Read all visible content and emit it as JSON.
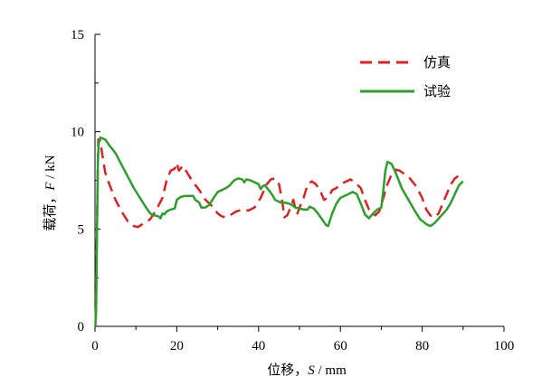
{
  "chart_data": {
    "type": "line",
    "xlabel_parts": [
      "位移，",
      "S",
      " / mm"
    ],
    "ylabel_parts": [
      "载荷，",
      "F",
      " / kN"
    ],
    "xlim": [
      0,
      100
    ],
    "ylim": [
      0,
      15
    ],
    "xticks": [
      0,
      20,
      40,
      60,
      80,
      100
    ],
    "yticks": [
      0,
      5,
      10,
      15
    ],
    "grid": false,
    "legend_position": "top-right",
    "series": [
      {
        "name": "仿真",
        "color": "#e02020",
        "style": "dashed",
        "points": [
          [
            0.2,
            0.4
          ],
          [
            0.5,
            5.5
          ],
          [
            0.8,
            9.6
          ],
          [
            1.2,
            9.6
          ],
          [
            1.8,
            8.8
          ],
          [
            2.5,
            7.9
          ],
          [
            3.5,
            7.3
          ],
          [
            5.0,
            6.5
          ],
          [
            6.5,
            5.9
          ],
          [
            8.0,
            5.4
          ],
          [
            9.5,
            5.15
          ],
          [
            10.5,
            5.1
          ],
          [
            12.0,
            5.3
          ],
          [
            13.5,
            5.5
          ],
          [
            15.0,
            6.0
          ],
          [
            16.5,
            6.6
          ],
          [
            17.5,
            7.5
          ],
          [
            18.5,
            8.0
          ],
          [
            19.5,
            8.1
          ],
          [
            20.0,
            8.4
          ],
          [
            20.5,
            8.0
          ],
          [
            21.5,
            8.25
          ],
          [
            22.5,
            7.9
          ],
          [
            24.0,
            7.4
          ],
          [
            25.5,
            7.0
          ],
          [
            27.0,
            6.5
          ],
          [
            28.5,
            6.2
          ],
          [
            30.0,
            5.8
          ],
          [
            31.0,
            5.65
          ],
          [
            32.0,
            5.6
          ],
          [
            33.0,
            5.7
          ],
          [
            34.5,
            5.9
          ],
          [
            36.0,
            6.0
          ],
          [
            37.5,
            5.95
          ],
          [
            39.0,
            6.1
          ],
          [
            40.5,
            6.6
          ],
          [
            42.0,
            7.3
          ],
          [
            43.0,
            7.55
          ],
          [
            44.0,
            7.6
          ],
          [
            45.0,
            7.3
          ],
          [
            45.8,
            6.4
          ],
          [
            46.3,
            5.6
          ],
          [
            47.0,
            5.7
          ],
          [
            48.0,
            6.2
          ],
          [
            48.5,
            6.5
          ],
          [
            49.0,
            6.0
          ],
          [
            49.5,
            5.8
          ],
          [
            50.0,
            6.1
          ],
          [
            51.0,
            6.6
          ],
          [
            52.0,
            7.3
          ],
          [
            53.0,
            7.45
          ],
          [
            54.0,
            7.3
          ],
          [
            55.0,
            7.0
          ],
          [
            56.0,
            6.5
          ],
          [
            57.0,
            6.6
          ],
          [
            58.0,
            7.0
          ],
          [
            59.0,
            7.1
          ],
          [
            60.0,
            7.3
          ],
          [
            61.5,
            7.45
          ],
          [
            62.5,
            7.55
          ],
          [
            64.0,
            7.3
          ],
          [
            65.0,
            7.1
          ],
          [
            66.0,
            6.5
          ],
          [
            67.0,
            6.0
          ],
          [
            68.0,
            5.8
          ],
          [
            68.5,
            5.7
          ],
          [
            69.5,
            5.9
          ],
          [
            70.5,
            6.6
          ],
          [
            71.5,
            7.3
          ],
          [
            72.5,
            7.8
          ],
          [
            73.5,
            8.05
          ],
          [
            74.5,
            8.0
          ],
          [
            75.5,
            7.85
          ],
          [
            77.0,
            7.6
          ],
          [
            78.5,
            7.2
          ],
          [
            80.0,
            6.6
          ],
          [
            81.0,
            6.0
          ],
          [
            82.0,
            5.7
          ],
          [
            83.0,
            5.6
          ],
          [
            84.0,
            5.8
          ],
          [
            85.0,
            6.3
          ],
          [
            86.0,
            6.8
          ],
          [
            87.0,
            7.3
          ],
          [
            88.0,
            7.6
          ],
          [
            89.0,
            7.75
          ],
          [
            90.0,
            7.85
          ]
        ]
      },
      {
        "name": "试验",
        "color": "#2aa02a",
        "style": "solid",
        "points": [
          [
            0.1,
            0.0
          ],
          [
            0.3,
            1.2
          ],
          [
            0.5,
            5.0
          ],
          [
            0.7,
            8.5
          ],
          [
            0.9,
            9.4
          ],
          [
            1.3,
            9.7
          ],
          [
            2.5,
            9.6
          ],
          [
            3.5,
            9.3
          ],
          [
            5.0,
            8.9
          ],
          [
            6.5,
            8.3
          ],
          [
            8.0,
            7.7
          ],
          [
            9.5,
            7.1
          ],
          [
            11.0,
            6.6
          ],
          [
            12.5,
            6.1
          ],
          [
            13.5,
            5.8
          ],
          [
            14.5,
            5.7
          ],
          [
            15.5,
            5.65
          ],
          [
            16.0,
            5.55
          ],
          [
            16.5,
            5.8
          ],
          [
            17.0,
            5.75
          ],
          [
            17.5,
            5.9
          ],
          [
            18.5,
            6.0
          ],
          [
            19.5,
            6.05
          ],
          [
            20.0,
            6.5
          ],
          [
            21.0,
            6.65
          ],
          [
            22.0,
            6.7
          ],
          [
            23.0,
            6.7
          ],
          [
            24.0,
            6.7
          ],
          [
            24.5,
            6.5
          ],
          [
            25.5,
            6.35
          ],
          [
            26.0,
            6.1
          ],
          [
            27.0,
            6.1
          ],
          [
            28.0,
            6.25
          ],
          [
            29.0,
            6.6
          ],
          [
            30.0,
            6.9
          ],
          [
            31.0,
            7.0
          ],
          [
            32.0,
            7.1
          ],
          [
            33.0,
            7.25
          ],
          [
            34.0,
            7.5
          ],
          [
            35.0,
            7.6
          ],
          [
            36.0,
            7.55
          ],
          [
            36.5,
            7.4
          ],
          [
            37.0,
            7.55
          ],
          [
            38.0,
            7.5
          ],
          [
            39.0,
            7.4
          ],
          [
            40.0,
            7.3
          ],
          [
            40.5,
            7.05
          ],
          [
            41.0,
            7.2
          ],
          [
            41.5,
            7.25
          ],
          [
            42.5,
            7.0
          ],
          [
            43.5,
            6.7
          ],
          [
            44.0,
            6.5
          ],
          [
            45.5,
            6.35
          ],
          [
            46.5,
            6.35
          ],
          [
            47.5,
            6.3
          ],
          [
            48.0,
            6.25
          ],
          [
            49.0,
            6.1
          ],
          [
            50.0,
            6.05
          ],
          [
            51.0,
            6.0
          ],
          [
            52.0,
            6.0
          ],
          [
            52.5,
            6.15
          ],
          [
            53.5,
            6.05
          ],
          [
            54.5,
            5.8
          ],
          [
            55.5,
            5.5
          ],
          [
            56.5,
            5.2
          ],
          [
            57.0,
            5.15
          ],
          [
            58.0,
            5.8
          ],
          [
            59.0,
            6.3
          ],
          [
            60.0,
            6.6
          ],
          [
            61.0,
            6.7
          ],
          [
            62.0,
            6.8
          ],
          [
            63.0,
            6.9
          ],
          [
            64.0,
            6.8
          ],
          [
            65.0,
            6.3
          ],
          [
            66.0,
            5.75
          ],
          [
            67.0,
            5.55
          ],
          [
            68.0,
            5.8
          ],
          [
            69.0,
            6.0
          ],
          [
            70.0,
            6.1
          ],
          [
            70.5,
            7.0
          ],
          [
            71.0,
            8.0
          ],
          [
            71.5,
            8.45
          ],
          [
            72.5,
            8.35
          ],
          [
            73.5,
            7.9
          ],
          [
            75.0,
            7.1
          ],
          [
            76.5,
            6.55
          ],
          [
            78.0,
            6.0
          ],
          [
            79.5,
            5.5
          ],
          [
            81.0,
            5.25
          ],
          [
            82.0,
            5.15
          ],
          [
            83.0,
            5.3
          ],
          [
            84.5,
            5.65
          ],
          [
            86.0,
            6.0
          ],
          [
            87.0,
            6.35
          ],
          [
            88.0,
            6.8
          ],
          [
            89.0,
            7.25
          ],
          [
            90.0,
            7.45
          ]
        ]
      }
    ]
  }
}
